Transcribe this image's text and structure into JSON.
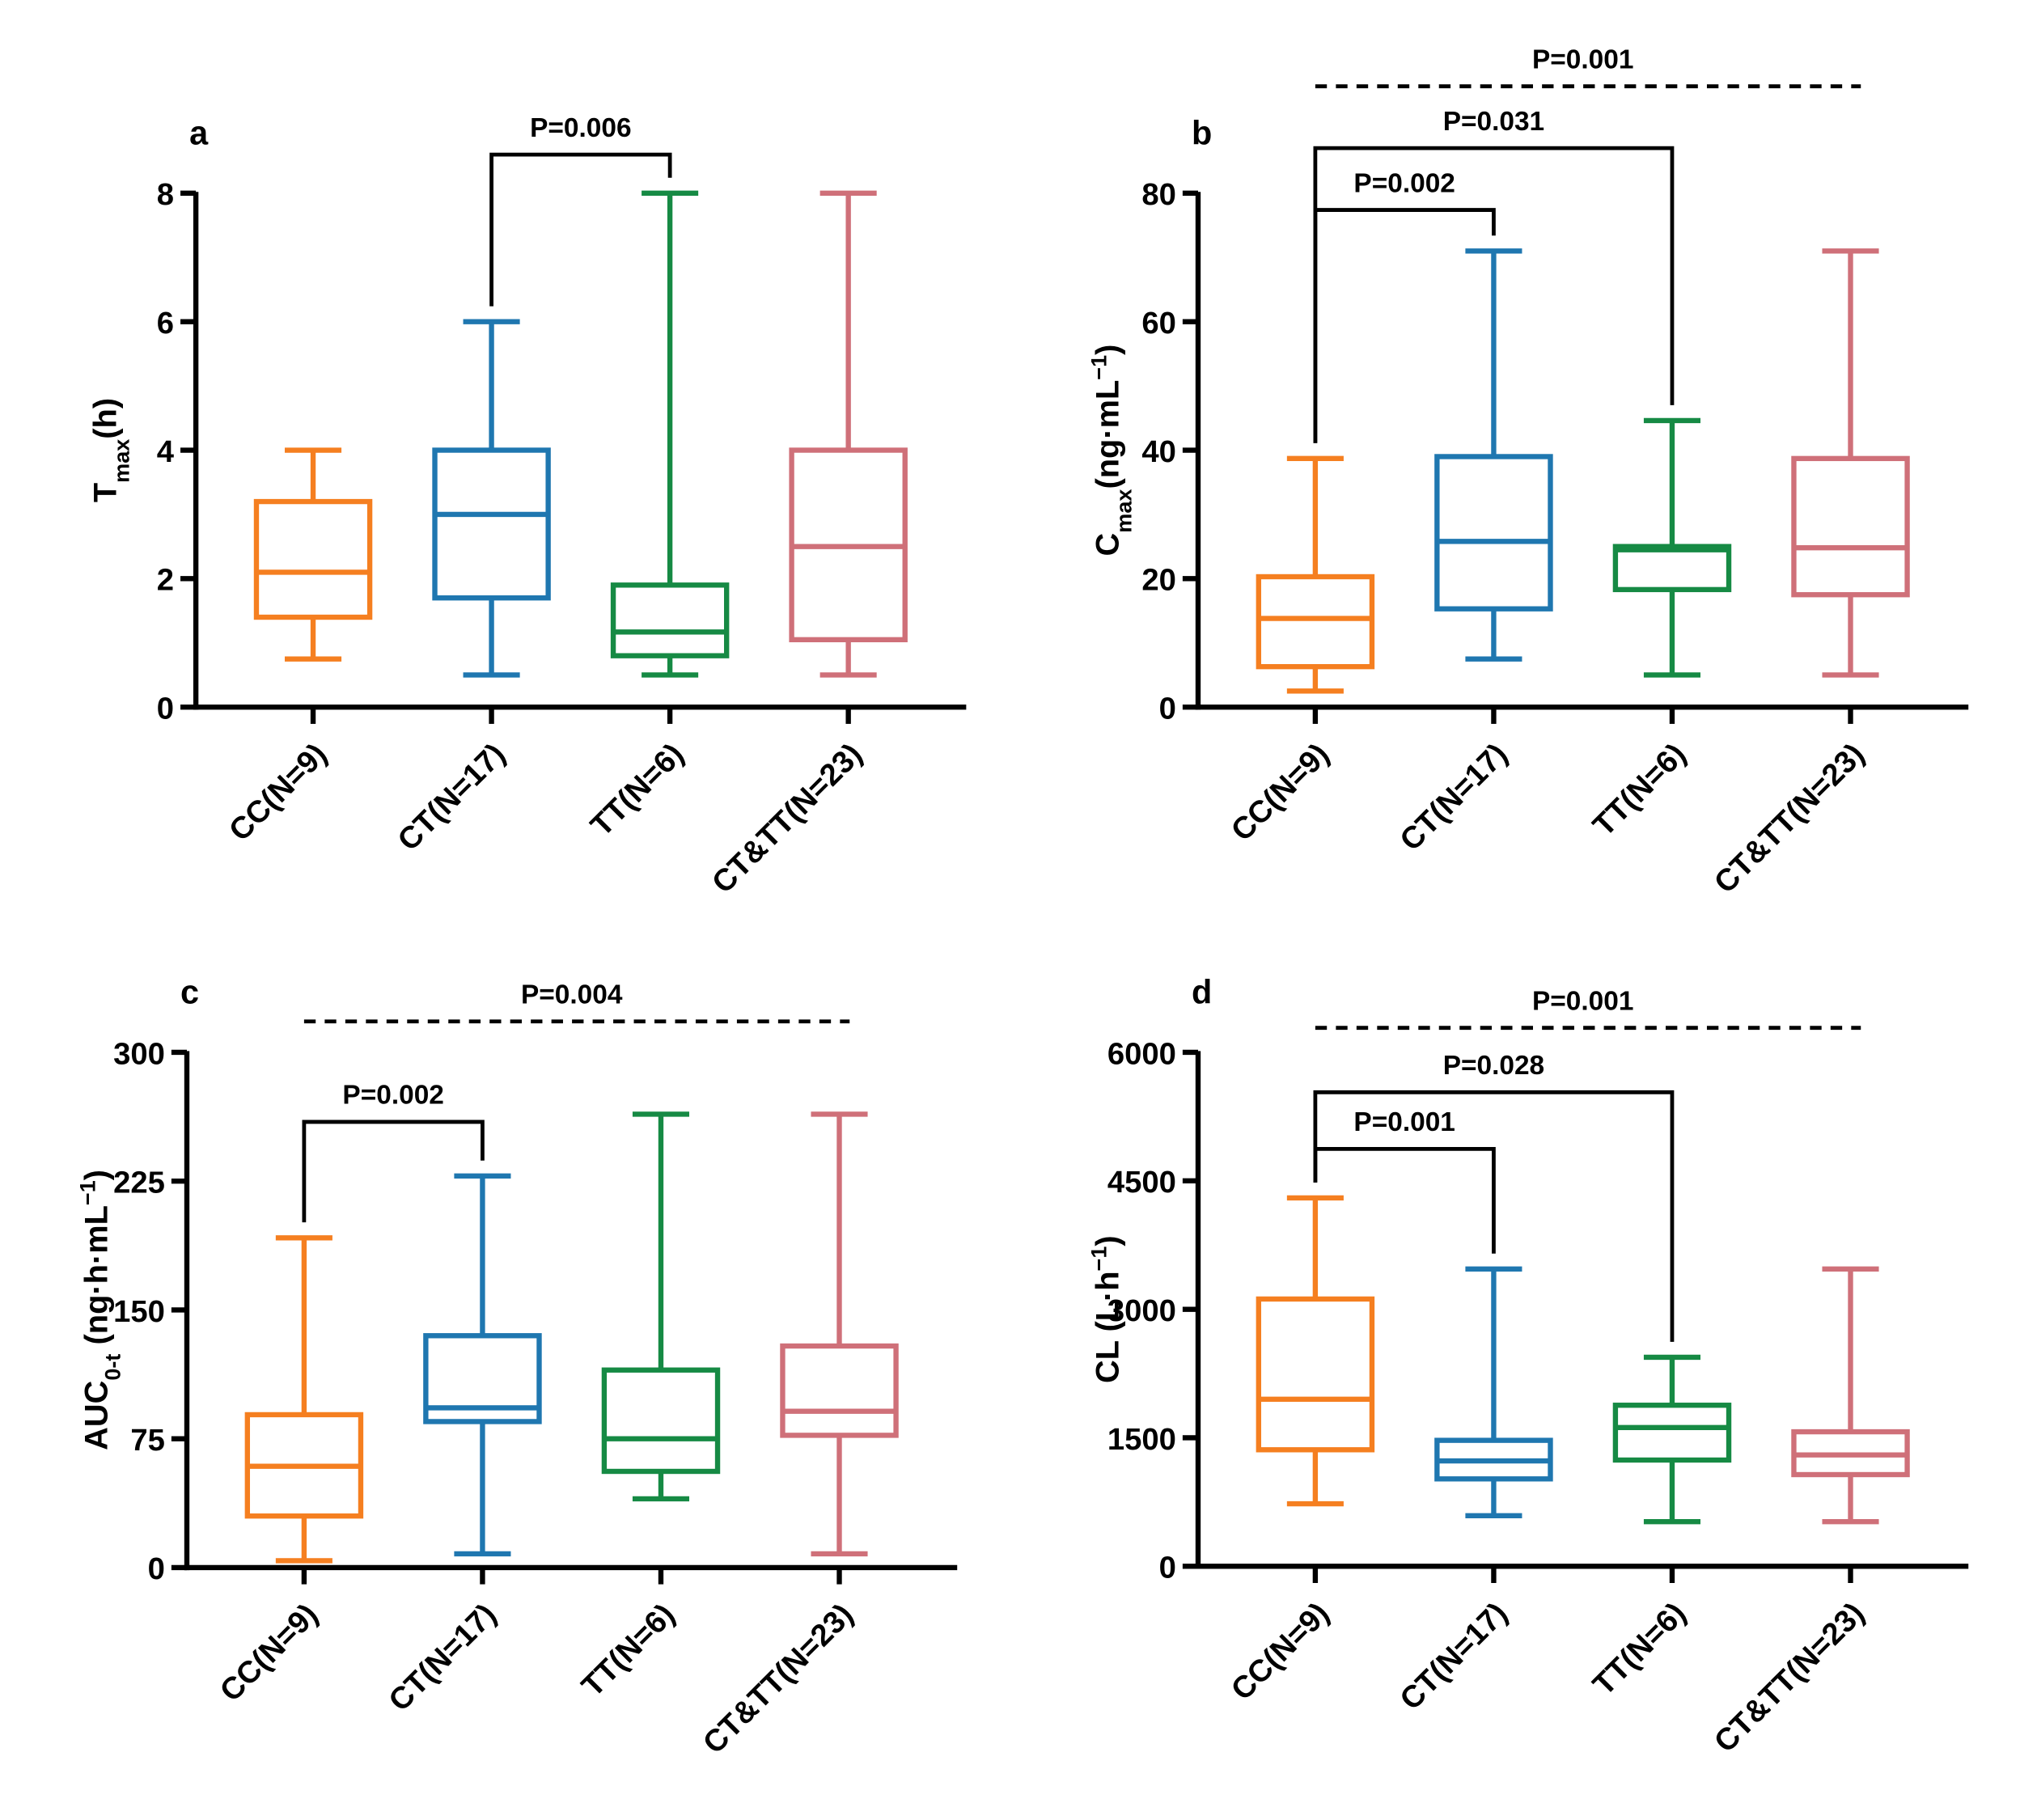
{
  "chart_data": [
    {
      "type": "box",
      "panel": "a",
      "y_label": [
        {
          "text": "T"
        },
        {
          "text": "max",
          "script": "sub"
        },
        {
          "text": "(h)"
        }
      ],
      "categories": [
        "CC(N=9)",
        "CT(N=17)",
        "TT(N=6)",
        "CT&TT(N=23)"
      ],
      "colors": [
        "#f57f20",
        "#1f77b0",
        "#168a44",
        "#cf7079"
      ],
      "boxes": [
        {
          "min": 0.75,
          "q1": 1.4,
          "median": 2.1,
          "q3": 3.2,
          "max": 4
        },
        {
          "min": 0.5,
          "q1": 1.7,
          "median": 3,
          "q3": 4,
          "max": 6
        },
        {
          "min": 0.5,
          "q1": 0.8,
          "median": 1.17,
          "q3": 1.9,
          "max": 8
        },
        {
          "min": 0.5,
          "q1": 1.05,
          "median": 2.5,
          "q3": 4,
          "max": 8
        }
      ],
      "ylim": [
        0,
        8
      ],
      "yticks": [
        0,
        2,
        4,
        6,
        8
      ],
      "comparisons": [
        {
          "label": "P=0.006",
          "from": 1,
          "to": 2,
          "style": "solid"
        }
      ]
    },
    {
      "type": "box",
      "panel": "b",
      "y_label": [
        {
          "text": "C"
        },
        {
          "text": "max",
          "script": "sub"
        },
        {
          "text": "(ng·mL"
        },
        {
          "text": "−1",
          "script": "sup"
        },
        {
          "text": ")"
        }
      ],
      "categories": [
        "CC(N=9)",
        "CT(N=17)",
        "TT(N=6)",
        "CT&TT(N=23)"
      ],
      "colors": [
        "#f57f20",
        "#1f77b0",
        "#168a44",
        "#cf7079"
      ],
      "boxes": [
        {
          "min": 2.5,
          "q1": 6.3,
          "median": 13.8,
          "q3": 20.3,
          "max": 38.7
        },
        {
          "min": 7.5,
          "q1": 15.3,
          "median": 25.8,
          "q3": 39,
          "max": 71
        },
        {
          "min": 5,
          "q1": 18.3,
          "median": 24.5,
          "q3": 25,
          "max": 44.6
        },
        {
          "min": 5,
          "q1": 17.5,
          "median": 24.8,
          "q3": 38.7,
          "max": 71
        }
      ],
      "ylim": [
        0,
        80
      ],
      "yticks": [
        0,
        20,
        40,
        60,
        80
      ],
      "comparisons": [
        {
          "label": "P=0.002",
          "from": 0,
          "to": 1,
          "style": "solid"
        },
        {
          "label": "P=0.031",
          "from": 0,
          "to": 2,
          "style": "solid"
        },
        {
          "label": "P=0.001",
          "from": 0,
          "to": 3,
          "style": "dashed"
        }
      ]
    },
    {
      "type": "box",
      "panel": "c",
      "y_label": [
        {
          "text": "AUC"
        },
        {
          "text": "0-t",
          "script": "sub"
        },
        {
          "text": " (ng·h·mL"
        },
        {
          "text": "−1",
          "script": "sup"
        },
        {
          "text": ")"
        }
      ],
      "categories": [
        "CC(N=9)",
        "CT(N=17)",
        "TT(N=6)",
        "CT&TT(N=23)"
      ],
      "colors": [
        "#f57f20",
        "#1f77b0",
        "#168a44",
        "#cf7079"
      ],
      "boxes": [
        {
          "min": 4,
          "q1": 30,
          "median": 59,
          "q3": 89,
          "max": 192
        },
        {
          "min": 8,
          "q1": 85,
          "median": 93,
          "q3": 135,
          "max": 228
        },
        {
          "min": 40,
          "q1": 56,
          "median": 75,
          "q3": 115,
          "max": 264
        },
        {
          "min": 8,
          "q1": 77,
          "median": 91,
          "q3": 129,
          "max": 264
        }
      ],
      "ylim": [
        0,
        300
      ],
      "yticks": [
        0,
        75,
        150,
        225,
        300
      ],
      "comparisons": [
        {
          "label": "P=0.002",
          "from": 0,
          "to": 1,
          "style": "solid"
        },
        {
          "label": "P=0.004",
          "from": 0,
          "to": 3,
          "style": "dashed"
        }
      ]
    },
    {
      "type": "box",
      "panel": "d",
      "y_label": [
        {
          "text": "CL (L·h"
        },
        {
          "text": "−1",
          "script": "sup"
        },
        {
          "text": ")"
        }
      ],
      "categories": [
        "CC(N=9)",
        "CT(N=17)",
        "TT(N=6)",
        "CT&TT(N=23)"
      ],
      "colors": [
        "#f57f20",
        "#1f77b0",
        "#168a44",
        "#cf7079"
      ],
      "boxes": [
        {
          "min": 730,
          "q1": 1360,
          "median": 1950,
          "q3": 3120,
          "max": 4300
        },
        {
          "min": 590,
          "q1": 1020,
          "median": 1230,
          "q3": 1470,
          "max": 3470
        },
        {
          "min": 520,
          "q1": 1240,
          "median": 1620,
          "q3": 1880,
          "max": 2440
        },
        {
          "min": 520,
          "q1": 1070,
          "median": 1300,
          "q3": 1570,
          "max": 3470
        }
      ],
      "ylim": [
        0,
        6000
      ],
      "yticks": [
        0,
        1500,
        3000,
        4500,
        6000
      ],
      "comparisons": [
        {
          "label": "P=0.001",
          "from": 0,
          "to": 1,
          "style": "solid"
        },
        {
          "label": "P=0.028",
          "from": 0,
          "to": 2,
          "style": "solid"
        },
        {
          "label": "P=0.001",
          "from": 0,
          "to": 3,
          "style": "dashed"
        }
      ]
    }
  ]
}
